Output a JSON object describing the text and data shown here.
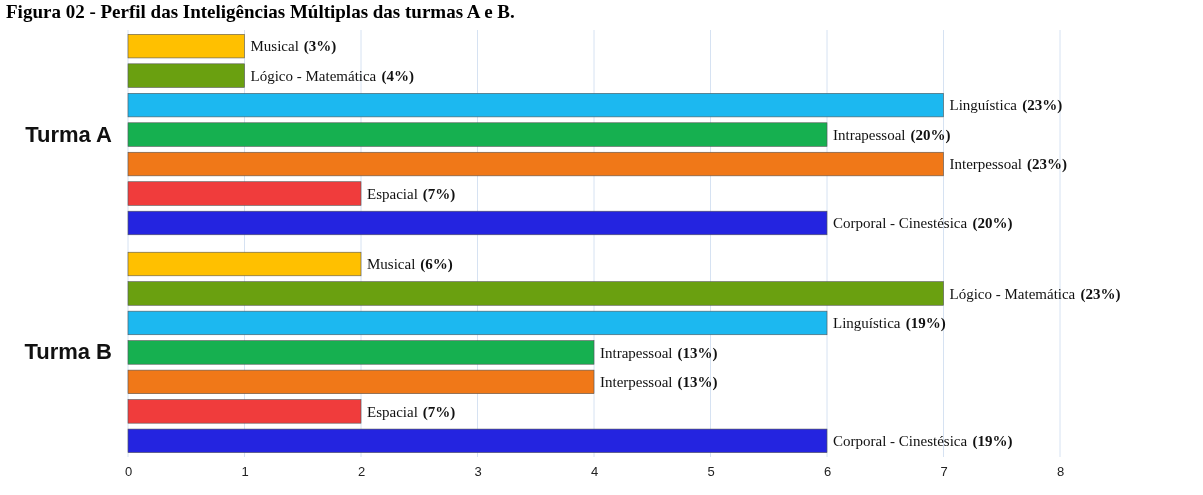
{
  "chart_data": {
    "type": "bar",
    "orientation": "horizontal",
    "title": "Figura 02 - Perfil das Inteligências Múltiplas das turmas A e B.",
    "categories": [
      "Turma A",
      "Turma B"
    ],
    "series": [
      {
        "name": "Musical",
        "color": "#ffc000",
        "values": [
          1,
          2
        ]
      },
      {
        "name": "Lógico - Matemática",
        "color": "#6aa010",
        "values": [
          1,
          7
        ]
      },
      {
        "name": "Linguística",
        "color": "#1cb8f0",
        "values": [
          7,
          6
        ]
      },
      {
        "name": "Intrapessoal",
        "color": "#16b050",
        "values": [
          6,
          4
        ]
      },
      {
        "name": "Interpessoal",
        "color": "#f07818",
        "values": [
          7,
          4
        ]
      },
      {
        "name": "Espacial",
        "color": "#f03c3c",
        "values": [
          2,
          2
        ]
      },
      {
        "name": "Corporal - Cinestésica",
        "color": "#2424e0",
        "values": [
          6,
          6
        ]
      }
    ],
    "annotations": [
      "(3%)",
      "(6%)",
      "(4%)",
      "(23%)",
      "(23%)",
      "(19%)",
      "(20%)",
      "(13%)",
      "(23%)",
      "(13%)",
      "(7%)",
      "(7%)",
      "(20%)",
      "(19%)"
    ],
    "xlim": [
      0,
      8
    ],
    "xticks": [
      0,
      1,
      2,
      3,
      4,
      5,
      6,
      7,
      8
    ],
    "grid": "x"
  }
}
